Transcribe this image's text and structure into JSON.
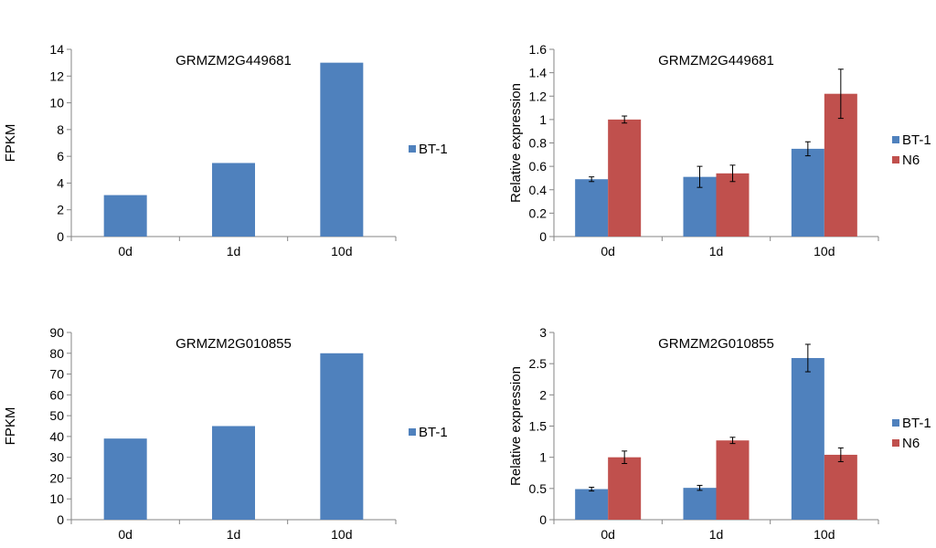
{
  "colors": {
    "bt1": "#4f81bd",
    "n6": "#c0504d",
    "axis": "#868686",
    "text": "#000000"
  },
  "chart_data": [
    {
      "type": "bar",
      "title": "GRMZM2G449681",
      "xlabel": "",
      "ylabel": "FPKM",
      "categories": [
        "0d",
        "1d",
        "10d"
      ],
      "ylim": [
        0,
        14
      ],
      "yticks": [
        "0",
        "2",
        "4",
        "6",
        "8",
        "10",
        "12",
        "14"
      ],
      "legend_position": "right",
      "grid": false,
      "series": [
        {
          "name": "BT-1",
          "color": "#4f81bd",
          "values": [
            3.1,
            5.5,
            13.0
          ]
        }
      ]
    },
    {
      "type": "bar",
      "title": "GRMZM2G449681",
      "xlabel": "",
      "ylabel": "Relative expression",
      "categories": [
        "0d",
        "1d",
        "10d"
      ],
      "ylim": [
        0,
        1.6
      ],
      "yticks": [
        "0",
        "0.2",
        "0.4",
        "0.6",
        "0.8",
        "1",
        "1.2",
        "1.4",
        "1.6"
      ],
      "legend_position": "right",
      "grid": false,
      "series": [
        {
          "name": "BT-1",
          "color": "#4f81bd",
          "values": [
            0.49,
            0.51,
            0.75
          ],
          "errors": [
            0.02,
            0.09,
            0.06
          ]
        },
        {
          "name": "N6",
          "color": "#c0504d",
          "values": [
            1.0,
            0.54,
            1.22
          ],
          "errors": [
            0.03,
            0.07,
            0.21
          ]
        }
      ]
    },
    {
      "type": "bar",
      "title": "GRMZM2G010855",
      "xlabel": "",
      "ylabel": "FPKM",
      "categories": [
        "0d",
        "1d",
        "10d"
      ],
      "ylim": [
        0,
        90
      ],
      "yticks": [
        "0",
        "10",
        "20",
        "30",
        "40",
        "50",
        "60",
        "70",
        "80",
        "90"
      ],
      "legend_position": "right",
      "grid": false,
      "series": [
        {
          "name": "BT-1",
          "color": "#4f81bd",
          "values": [
            39,
            45,
            80
          ]
        }
      ]
    },
    {
      "type": "bar",
      "title": "GRMZM2G010855",
      "xlabel": "",
      "ylabel": "Relative expression",
      "categories": [
        "0d",
        "1d",
        "10d"
      ],
      "ylim": [
        0,
        3
      ],
      "yticks": [
        "0",
        "0.5",
        "1",
        "1.5",
        "2",
        "2.5",
        "3"
      ],
      "legend_position": "right",
      "grid": false,
      "series": [
        {
          "name": "BT-1",
          "color": "#4f81bd",
          "values": [
            0.49,
            0.51,
            2.59
          ],
          "errors": [
            0.03,
            0.04,
            0.22
          ]
        },
        {
          "name": "N6",
          "color": "#c0504d",
          "values": [
            1.0,
            1.27,
            1.04
          ],
          "errors": [
            0.1,
            0.05,
            0.11
          ]
        }
      ]
    }
  ]
}
